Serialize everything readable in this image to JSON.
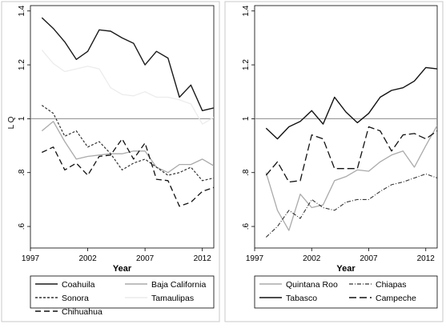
{
  "chart_data": [
    {
      "type": "line",
      "xlabel": "Year",
      "ylabel": "L Q",
      "xlim": [
        1997,
        2013
      ],
      "ylim": [
        0.52,
        1.42
      ],
      "xticks": [
        1997,
        2002,
        2007,
        2012
      ],
      "xtick_labels": [
        "1997",
        "2002",
        "2007",
        "2012"
      ],
      "yticks": [
        0.6,
        0.8,
        1.0,
        1.2,
        1.4
      ],
      "ytick_labels": [
        ".6",
        ".8",
        "1",
        "1.2",
        "1.4"
      ],
      "reference_line": 1.0,
      "grid": false,
      "legend_position": "bottom",
      "x": [
        1998,
        1999,
        2000,
        2001,
        2002,
        2003,
        2004,
        2005,
        2006,
        2007,
        2008,
        2009,
        2010,
        2011,
        2012,
        2013
      ],
      "series": [
        {
          "name": "Coahuila",
          "color": "#1a1a1a",
          "dash": "solid",
          "width": 1.4,
          "values": [
            1.375,
            1.335,
            1.285,
            1.22,
            1.25,
            1.33,
            1.325,
            1.3,
            1.28,
            1.2,
            1.25,
            1.225,
            1.08,
            1.125,
            1.03,
            1.04
          ]
        },
        {
          "name": "Baja California",
          "color": "#aaaaaa",
          "dash": "solid",
          "width": 1.3,
          "values": [
            0.955,
            0.99,
            0.915,
            0.85,
            0.86,
            0.865,
            0.87,
            0.87,
            0.88,
            0.88,
            0.82,
            0.8,
            0.83,
            0.83,
            0.85,
            0.825
          ]
        },
        {
          "name": "Sonora",
          "color": "#333333",
          "dash": "3,2",
          "width": 1.2,
          "values": [
            1.05,
            1.02,
            0.935,
            0.955,
            0.895,
            0.915,
            0.87,
            0.81,
            0.835,
            0.85,
            0.82,
            0.79,
            0.8,
            0.82,
            0.77,
            0.78
          ]
        },
        {
          "name": "Tamaulipas",
          "color": "#ececec",
          "dash": "solid",
          "width": 1.3,
          "values": [
            1.255,
            1.205,
            1.175,
            1.185,
            1.195,
            1.185,
            1.115,
            1.09,
            1.085,
            1.1,
            1.08,
            1.08,
            1.07,
            1.055,
            0.98,
            1.005
          ]
        },
        {
          "name": "Chihuahua",
          "color": "#111111",
          "dash": "7,4",
          "width": 1.3,
          "values": [
            0.875,
            0.895,
            0.81,
            0.835,
            0.79,
            0.86,
            0.865,
            0.925,
            0.85,
            0.91,
            0.775,
            0.77,
            0.675,
            0.69,
            0.73,
            0.745
          ]
        }
      ]
    },
    {
      "type": "line",
      "xlabel": "Year",
      "ylabel": "",
      "xlim": [
        1997,
        2013
      ],
      "ylim": [
        0.52,
        1.42
      ],
      "xticks": [
        1997,
        2002,
        2007,
        2012
      ],
      "xtick_labels": [
        "1997",
        "2002",
        "2007",
        "2012"
      ],
      "yticks": [
        0.6,
        0.8,
        1.0,
        1.2,
        1.4
      ],
      "ytick_labels": [
        ".6",
        ".8",
        "1",
        "1.2",
        "1.4"
      ],
      "reference_line": 1.0,
      "grid": false,
      "legend_position": "bottom",
      "x": [
        1998,
        1999,
        2000,
        2001,
        2002,
        2003,
        2004,
        2005,
        2006,
        2007,
        2008,
        2009,
        2010,
        2011,
        2012,
        2013
      ],
      "series": [
        {
          "name": "Quintana Roo",
          "color": "#aaaaaa",
          "dash": "solid",
          "width": 1.3,
          "values": [
            0.8,
            0.66,
            0.585,
            0.72,
            0.67,
            0.68,
            0.77,
            0.785,
            0.81,
            0.805,
            0.84,
            0.865,
            0.88,
            0.82,
            0.9,
            0.975
          ]
        },
        {
          "name": "Chiapas",
          "color": "#333333",
          "dash": "5,2,1,2",
          "width": 1.1,
          "values": [
            0.56,
            0.6,
            0.66,
            0.63,
            0.7,
            0.67,
            0.66,
            0.69,
            0.7,
            0.7,
            0.73,
            0.755,
            0.765,
            0.78,
            0.795,
            0.78
          ]
        },
        {
          "name": "Tabasco",
          "color": "#111111",
          "dash": "solid",
          "width": 1.4,
          "values": [
            0.965,
            0.925,
            0.97,
            0.99,
            1.03,
            0.98,
            1.08,
            1.025,
            0.985,
            1.02,
            1.08,
            1.105,
            1.115,
            1.14,
            1.19,
            1.185
          ]
        },
        {
          "name": "Campeche",
          "color": "#111111",
          "dash": "9,4",
          "width": 1.3,
          "values": [
            0.79,
            0.84,
            0.765,
            0.77,
            0.94,
            0.925,
            0.815,
            0.815,
            0.815,
            0.97,
            0.955,
            0.88,
            0.94,
            0.945,
            0.925,
            0.955
          ]
        }
      ]
    }
  ]
}
